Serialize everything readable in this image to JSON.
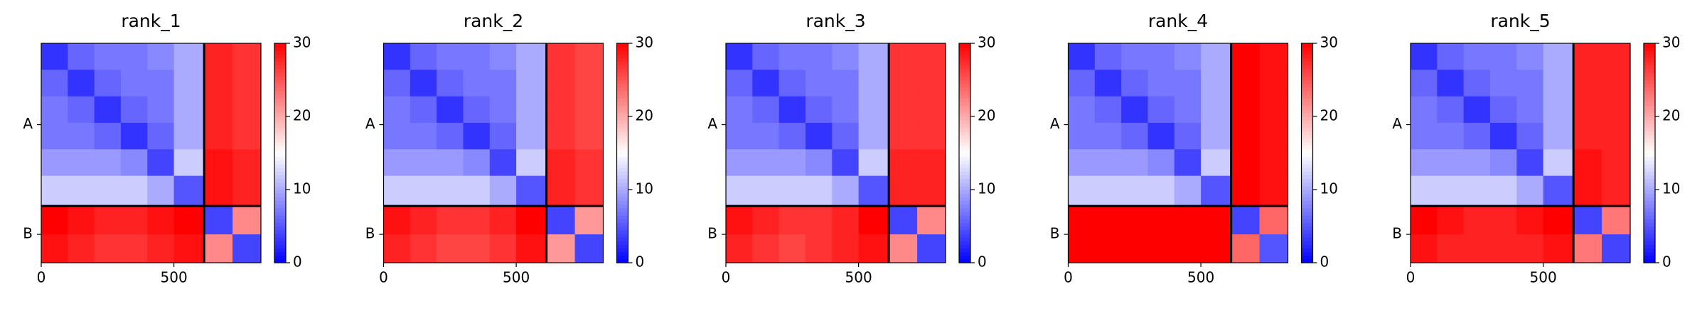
{
  "chart_data": [
    {
      "type": "heatmap",
      "title": "rank_1",
      "colormap": "bwr",
      "clim": [
        0,
        30
      ],
      "cticks": [
        0,
        10,
        20,
        30
      ],
      "xlim": [
        0,
        828
      ],
      "xticks": [
        0,
        500
      ],
      "ylim": [
        828,
        0
      ],
      "yticks": [
        {
          "value": 307,
          "label": "A"
        },
        {
          "value": 721,
          "label": "B"
        }
      ],
      "boundaries": [
        614
      ],
      "bin_edges": [
        0,
        100,
        200,
        300,
        400,
        500,
        614,
        721,
        828
      ],
      "matrix": [
        [
          3,
          6,
          7,
          7,
          8,
          10,
          28,
          27
        ],
        [
          6,
          3,
          6,
          7,
          7,
          10,
          28,
          27
        ],
        [
          7,
          6,
          3,
          6,
          7,
          10,
          28,
          27
        ],
        [
          7,
          7,
          6,
          3,
          6,
          10,
          28,
          27
        ],
        [
          9,
          9,
          9,
          8,
          4,
          12,
          29,
          28
        ],
        [
          12,
          12,
          12,
          12,
          10,
          5,
          29,
          28
        ],
        [
          30,
          29,
          28,
          28,
          29,
          30,
          4,
          22
        ],
        [
          29,
          28,
          27,
          27,
          28,
          29,
          22,
          4
        ]
      ]
    },
    {
      "type": "heatmap",
      "title": "rank_2",
      "colormap": "bwr",
      "clim": [
        0,
        30
      ],
      "cticks": [
        0,
        10,
        20,
        30
      ],
      "xlim": [
        0,
        828
      ],
      "xticks": [
        0,
        500
      ],
      "ylim": [
        828,
        0
      ],
      "yticks": [
        {
          "value": 307,
          "label": "A"
        },
        {
          "value": 721,
          "label": "B"
        }
      ],
      "boundaries": [
        614
      ],
      "bin_edges": [
        0,
        100,
        200,
        300,
        400,
        500,
        614,
        721,
        828
      ],
      "matrix": [
        [
          3,
          6,
          7,
          7,
          8,
          10,
          27,
          26
        ],
        [
          6,
          3,
          6,
          7,
          7,
          10,
          27,
          26
        ],
        [
          7,
          6,
          3,
          6,
          7,
          10,
          27,
          26
        ],
        [
          7,
          7,
          6,
          3,
          6,
          10,
          27,
          26
        ],
        [
          9,
          9,
          9,
          8,
          4,
          12,
          28,
          27
        ],
        [
          12,
          12,
          12,
          12,
          10,
          5,
          28,
          27
        ],
        [
          29,
          28,
          27,
          27,
          28,
          30,
          4,
          21
        ],
        [
          28,
          27,
          26,
          26,
          27,
          29,
          21,
          4
        ]
      ]
    },
    {
      "type": "heatmap",
      "title": "rank_3",
      "colormap": "bwr",
      "clim": [
        0,
        30
      ],
      "cticks": [
        0,
        10,
        20,
        30
      ],
      "xlim": [
        0,
        828
      ],
      "xticks": [
        0,
        500
      ],
      "ylim": [
        828,
        0
      ],
      "yticks": [
        {
          "value": 307,
          "label": "A"
        },
        {
          "value": 721,
          "label": "B"
        }
      ],
      "boundaries": [
        614
      ],
      "bin_edges": [
        0,
        100,
        200,
        300,
        400,
        500,
        614,
        721,
        828
      ],
      "matrix": [
        [
          3,
          6,
          7,
          7,
          8,
          10,
          27,
          27
        ],
        [
          6,
          3,
          6,
          7,
          7,
          10,
          27,
          27
        ],
        [
          7,
          6,
          3,
          6,
          7,
          10,
          27,
          27
        ],
        [
          7,
          7,
          6,
          3,
          6,
          10,
          27,
          27
        ],
        [
          9,
          9,
          9,
          8,
          4,
          12,
          28,
          28
        ],
        [
          12,
          12,
          12,
          12,
          10,
          5,
          28,
          28
        ],
        [
          29,
          28,
          27,
          27,
          28,
          30,
          4,
          22
        ],
        [
          28,
          27,
          26,
          27,
          28,
          29,
          22,
          4
        ]
      ]
    },
    {
      "type": "heatmap",
      "title": "rank_4",
      "colormap": "bwr",
      "clim": [
        0,
        30
      ],
      "cticks": [
        0,
        10,
        20,
        30
      ],
      "xlim": [
        0,
        828
      ],
      "xticks": [
        0,
        500
      ],
      "ylim": [
        828,
        0
      ],
      "yticks": [
        {
          "value": 307,
          "label": "A"
        },
        {
          "value": 721,
          "label": "B"
        }
      ],
      "boundaries": [
        614
      ],
      "bin_edges": [
        0,
        100,
        200,
        300,
        400,
        500,
        614,
        721,
        828
      ],
      "matrix": [
        [
          3,
          6,
          7,
          7,
          8,
          10,
          30,
          29
        ],
        [
          6,
          3,
          6,
          7,
          7,
          10,
          30,
          29
        ],
        [
          7,
          6,
          3,
          6,
          7,
          10,
          30,
          29
        ],
        [
          7,
          7,
          6,
          3,
          6,
          10,
          30,
          29
        ],
        [
          9,
          9,
          9,
          8,
          4,
          12,
          30,
          29
        ],
        [
          12,
          12,
          12,
          12,
          10,
          5,
          30,
          29
        ],
        [
          30,
          30,
          30,
          30,
          30,
          30,
          4,
          24
        ],
        [
          30,
          30,
          30,
          30,
          30,
          30,
          24,
          5
        ]
      ]
    },
    {
      "type": "heatmap",
      "title": "rank_5",
      "colormap": "bwr",
      "clim": [
        0,
        30
      ],
      "cticks": [
        0,
        10,
        20,
        30
      ],
      "xlim": [
        0,
        828
      ],
      "xticks": [
        0,
        500
      ],
      "ylim": [
        828,
        0
      ],
      "yticks": [
        {
          "value": 307,
          "label": "A"
        },
        {
          "value": 721,
          "label": "B"
        }
      ],
      "boundaries": [
        614
      ],
      "bin_edges": [
        0,
        100,
        200,
        300,
        400,
        500,
        614,
        721,
        828
      ],
      "matrix": [
        [
          3,
          6,
          7,
          7,
          8,
          10,
          28,
          28
        ],
        [
          6,
          3,
          6,
          7,
          7,
          10,
          28,
          28
        ],
        [
          7,
          6,
          3,
          6,
          7,
          10,
          28,
          28
        ],
        [
          7,
          7,
          6,
          3,
          6,
          10,
          28,
          28
        ],
        [
          9,
          9,
          9,
          8,
          4,
          12,
          29,
          28
        ],
        [
          12,
          12,
          12,
          12,
          10,
          5,
          29,
          28
        ],
        [
          30,
          29,
          28,
          28,
          29,
          30,
          4,
          23
        ],
        [
          29,
          28,
          28,
          28,
          28,
          29,
          23,
          4
        ]
      ]
    }
  ]
}
